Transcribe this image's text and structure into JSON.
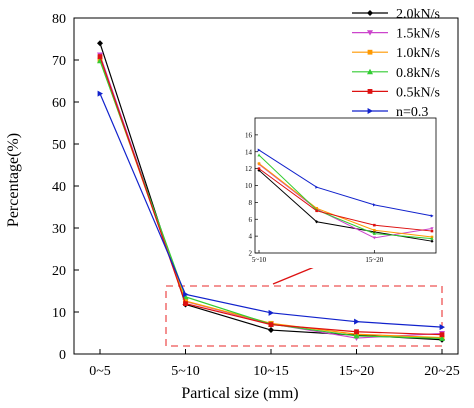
{
  "chart_data": {
    "type": "line",
    "xlabel": "Partical size (mm)",
    "ylabel": "Percentage(%)",
    "categories": [
      "0~5",
      "5~10",
      "10~15",
      "15~20",
      "20~25"
    ],
    "ylim": [
      0,
      80
    ],
    "yticks": [
      0,
      10,
      20,
      30,
      40,
      50,
      60,
      70,
      80
    ],
    "legend_position": "top-right",
    "series": [
      {
        "name": "2.0kN/s",
        "color": "#000000",
        "marker": "diamond",
        "values": [
          74.0,
          11.8,
          5.7,
          4.5,
          3.4
        ]
      },
      {
        "name": "1.5kN/s",
        "color": "#cc44cc",
        "marker": "triangle-down",
        "values": [
          71.2,
          12.5,
          7.2,
          3.8,
          4.9
        ]
      },
      {
        "name": "1.0kN/s",
        "color": "#ff9900",
        "marker": "square",
        "values": [
          70.0,
          12.6,
          7.3,
          4.7,
          3.9
        ]
      },
      {
        "name": "0.8kN/s",
        "color": "#33cc33",
        "marker": "triangle-up",
        "values": [
          69.8,
          13.6,
          7.1,
          4.3,
          3.7
        ]
      },
      {
        "name": "0.5kN/s",
        "color": "#dd1111",
        "marker": "square",
        "values": [
          70.8,
          12.0,
          7.0,
          5.3,
          4.6
        ]
      },
      {
        "name": "n=0.3",
        "color": "#1122cc",
        "marker": "triangle-right",
        "values": [
          62.0,
          14.2,
          9.8,
          7.7,
          6.4
        ]
      }
    ],
    "inset": {
      "categories": [
        "5~10",
        "15~20"
      ],
      "ylim": [
        2,
        18
      ],
      "yticks": [
        2,
        4,
        6,
        8,
        10,
        12,
        14,
        16
      ]
    }
  }
}
